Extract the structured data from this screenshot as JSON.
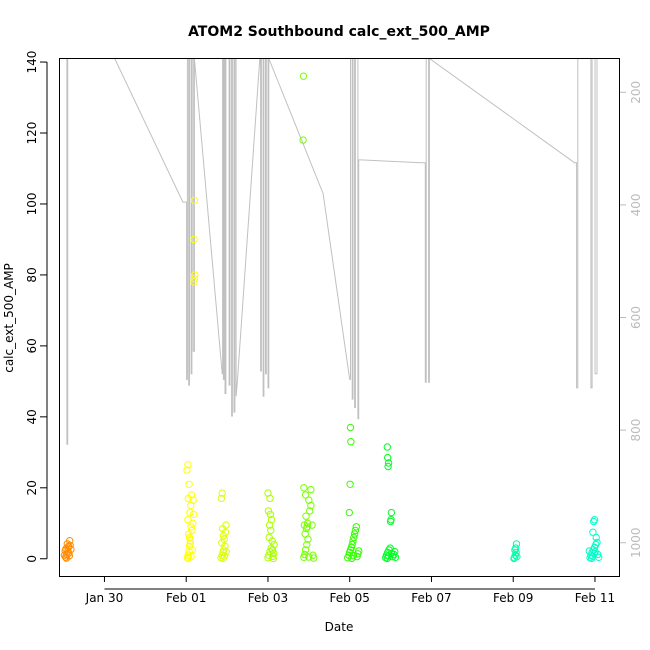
{
  "chart_data": {
    "type": "scatter",
    "title": "ATOM2 Southbound calc_ext_500_AMP",
    "xlabel": "Date",
    "ylabel": "calc_ext_500_AMP",
    "x_unit": "days since Jan 28",
    "xlim": [
      0.9,
      14.6
    ],
    "ylim": [
      -5,
      141
    ],
    "yticks": [
      0,
      20,
      40,
      60,
      80,
      100,
      120,
      140
    ],
    "xticks": [
      {
        "x": 2,
        "label": "Jan 30"
      },
      {
        "x": 4,
        "label": "Feb 01"
      },
      {
        "x": 6,
        "label": "Feb 03"
      },
      {
        "x": 8,
        "label": "Feb 05"
      },
      {
        "x": 10,
        "label": "Feb 07"
      },
      {
        "x": 12,
        "label": "Feb 09"
      },
      {
        "x": 14,
        "label": "Feb 11"
      }
    ],
    "right_axis": {
      "ylim": [
        1060,
        140
      ],
      "ticks": [
        200,
        400,
        600,
        800,
        1000
      ],
      "color": "#bbbbbb"
    },
    "grid": false,
    "line_color": "#c0c0c0",
    "depth_line": [
      [
        1.08,
        140
      ],
      [
        1.08,
        825
      ],
      [
        1.1,
        825
      ],
      [
        1.1,
        140
      ],
      [
        2.25,
        140
      ],
      [
        3.92,
        395
      ],
      [
        4.01,
        395
      ],
      [
        4.01,
        710
      ],
      [
        4.03,
        710
      ],
      [
        4.03,
        140
      ],
      [
        4.06,
        140
      ],
      [
        4.06,
        720
      ],
      [
        4.08,
        720
      ],
      [
        4.08,
        140
      ],
      [
        4.12,
        140
      ],
      [
        4.12,
        700
      ],
      [
        4.14,
        700
      ],
      [
        4.14,
        140
      ],
      [
        4.17,
        140
      ],
      [
        4.17,
        660
      ],
      [
        4.2,
        660
      ],
      [
        4.2,
        140
      ],
      [
        4.88,
        700
      ],
      [
        4.89,
        700
      ],
      [
        4.89,
        140
      ],
      [
        4.91,
        140
      ],
      [
        4.91,
        710
      ],
      [
        4.93,
        710
      ],
      [
        4.93,
        140
      ],
      [
        4.95,
        140
      ],
      [
        4.95,
        735
      ],
      [
        4.97,
        735
      ],
      [
        4.97,
        140
      ],
      [
        5.05,
        140
      ],
      [
        5.05,
        720
      ],
      [
        5.07,
        720
      ],
      [
        5.07,
        140
      ],
      [
        5.11,
        140
      ],
      [
        5.11,
        775
      ],
      [
        5.13,
        775
      ],
      [
        5.13,
        140
      ],
      [
        5.17,
        140
      ],
      [
        5.17,
        768
      ],
      [
        5.19,
        768
      ],
      [
        5.19,
        140
      ],
      [
        5.22,
        140
      ],
      [
        5.22,
        740
      ],
      [
        5.25,
        715
      ],
      [
        5.8,
        140
      ],
      [
        5.82,
        140
      ],
      [
        5.82,
        695
      ],
      [
        5.84,
        695
      ],
      [
        5.84,
        140
      ],
      [
        5.88,
        140
      ],
      [
        5.88,
        740
      ],
      [
        5.9,
        740
      ],
      [
        5.9,
        140
      ],
      [
        5.94,
        140
      ],
      [
        5.94,
        700
      ],
      [
        5.96,
        700
      ],
      [
        5.96,
        140
      ],
      [
        6.0,
        140
      ],
      [
        6.0,
        725
      ],
      [
        6.02,
        725
      ],
      [
        6.02,
        140
      ],
      [
        7.35,
        380
      ],
      [
        8.0,
        710
      ],
      [
        8.02,
        710
      ],
      [
        8.02,
        140
      ],
      [
        8.06,
        140
      ],
      [
        8.06,
        745
      ],
      [
        8.08,
        745
      ],
      [
        8.08,
        140
      ],
      [
        8.12,
        140
      ],
      [
        8.12,
        760
      ],
      [
        8.14,
        760
      ],
      [
        8.14,
        140
      ],
      [
        8.2,
        140
      ],
      [
        8.2,
        780
      ],
      [
        8.22,
        780
      ],
      [
        8.22,
        320
      ],
      [
        9.75,
        325
      ],
      [
        9.85,
        325
      ],
      [
        9.85,
        715
      ],
      [
        9.87,
        715
      ],
      [
        9.87,
        140
      ],
      [
        9.93,
        140
      ],
      [
        9.93,
        715
      ],
      [
        9.95,
        715
      ],
      [
        9.95,
        140
      ],
      [
        13.5,
        325
      ],
      [
        13.55,
        325
      ],
      [
        13.55,
        725
      ],
      [
        13.58,
        725
      ],
      [
        13.58,
        140
      ],
      [
        13.9,
        140
      ],
      [
        13.9,
        725
      ],
      [
        13.93,
        725
      ],
      [
        13.93,
        140
      ],
      [
        14.0,
        140
      ],
      [
        14.0,
        700
      ],
      [
        14.05,
        700
      ],
      [
        14.05,
        140
      ]
    ],
    "series": [
      {
        "color": "#ff8c00",
        "values": [
          [
            1.05,
            0.5
          ],
          [
            1.08,
            1.2
          ],
          [
            1.1,
            2.0
          ],
          [
            1.06,
            2.8
          ],
          [
            1.12,
            3.5
          ],
          [
            1.09,
            4.2
          ],
          [
            1.15,
            5.1
          ],
          [
            1.07,
            0.2
          ],
          [
            1.13,
            1.6
          ],
          [
            1.04,
            2.3
          ],
          [
            1.11,
            3.0
          ],
          [
            1.16,
            3.8
          ],
          [
            1.02,
            1.0
          ],
          [
            1.18,
            2.6
          ],
          [
            1.14,
            0.8
          ]
        ]
      },
      {
        "color": "#ffff00",
        "values": [
          [
            4.03,
            0.3
          ],
          [
            4.05,
            1.0
          ],
          [
            4.07,
            2.0
          ],
          [
            4.08,
            3.5
          ],
          [
            4.1,
            5.0
          ],
          [
            4.06,
            7.0
          ],
          [
            4.12,
            9.0
          ],
          [
            4.04,
            11.0
          ],
          [
            4.09,
            13.0
          ],
          [
            4.11,
            15.0
          ],
          [
            4.05,
            17.0
          ],
          [
            4.13,
            18.0
          ],
          [
            4.07,
            21.0
          ],
          [
            4.02,
            25.0
          ],
          [
            4.04,
            26.5
          ],
          [
            4.1,
            4.2
          ],
          [
            4.15,
            2.5
          ],
          [
            4.14,
            8.0
          ],
          [
            4.16,
            10.0
          ],
          [
            4.18,
            12.5
          ],
          [
            4.17,
            16.5
          ],
          [
            4.19,
            78.0
          ],
          [
            4.2,
            79.0
          ],
          [
            4.21,
            80.0
          ],
          [
            4.19,
            90.0
          ],
          [
            4.2,
            101.0
          ],
          [
            4.06,
            0.1
          ],
          [
            4.12,
            0.6
          ],
          [
            4.08,
            6.0
          ]
        ]
      },
      {
        "color": "#ddff00",
        "values": [
          [
            4.85,
            0.3
          ],
          [
            4.88,
            1.0
          ],
          [
            4.9,
            1.8
          ],
          [
            4.92,
            2.5
          ],
          [
            4.95,
            3.5
          ],
          [
            4.87,
            4.5
          ],
          [
            4.93,
            5.5
          ],
          [
            4.91,
            6.5
          ],
          [
            4.96,
            7.5
          ],
          [
            4.89,
            8.5
          ],
          [
            4.97,
            9.5
          ],
          [
            4.86,
            17.0
          ],
          [
            4.88,
            18.5
          ],
          [
            4.94,
            0.8
          ],
          [
            4.98,
            2.0
          ],
          [
            4.9,
            0.1
          ]
        ]
      },
      {
        "color": "#aaff00",
        "values": [
          [
            6.0,
            0.3
          ],
          [
            6.02,
            1.0
          ],
          [
            6.05,
            2.0
          ],
          [
            6.08,
            3.0
          ],
          [
            6.1,
            5.0
          ],
          [
            6.03,
            6.0
          ],
          [
            6.07,
            8.0
          ],
          [
            6.04,
            9.5
          ],
          [
            6.09,
            11.0
          ],
          [
            6.06,
            12.5
          ],
          [
            6.01,
            13.5
          ],
          [
            6.05,
            17.0
          ],
          [
            6.0,
            18.5
          ],
          [
            6.12,
            0.7
          ],
          [
            6.14,
            1.5
          ],
          [
            6.11,
            2.5
          ],
          [
            6.13,
            0.1
          ],
          [
            6.15,
            4.0
          ]
        ]
      },
      {
        "color": "#77ff00",
        "values": [
          [
            6.88,
            0.4
          ],
          [
            6.9,
            1.2
          ],
          [
            6.92,
            2.5
          ],
          [
            6.95,
            4.0
          ],
          [
            6.98,
            5.5
          ],
          [
            6.91,
            7.0
          ],
          [
            6.94,
            8.5
          ],
          [
            6.96,
            9.0
          ],
          [
            6.89,
            9.5
          ],
          [
            6.97,
            10.0
          ],
          [
            6.93,
            12.0
          ],
          [
            7.02,
            13.5
          ],
          [
            7.05,
            15.0
          ],
          [
            7.0,
            16.5
          ],
          [
            6.92,
            18.0
          ],
          [
            7.05,
            19.5
          ],
          [
            6.88,
            20.0
          ],
          [
            7.08,
            9.5
          ],
          [
            7.1,
            1.0
          ],
          [
            7.12,
            0.2
          ],
          [
            7.0,
            0.5
          ],
          [
            6.86,
            118.0
          ],
          [
            6.87,
            136.0
          ]
        ]
      },
      {
        "color": "#33ff00",
        "values": [
          [
            7.95,
            0.3
          ],
          [
            7.98,
            1.0
          ],
          [
            8.0,
            1.8
          ],
          [
            8.02,
            2.5
          ],
          [
            8.04,
            3.2
          ],
          [
            8.06,
            4.0
          ],
          [
            8.08,
            5.0
          ],
          [
            8.1,
            6.0
          ],
          [
            8.12,
            7.0
          ],
          [
            8.14,
            8.0
          ],
          [
            8.16,
            9.0
          ],
          [
            7.99,
            13.0
          ],
          [
            8.01,
            21.0
          ],
          [
            8.03,
            33.0
          ],
          [
            8.02,
            37.0
          ],
          [
            8.18,
            0.6
          ],
          [
            8.2,
            1.4
          ],
          [
            8.22,
            2.2
          ],
          [
            8.05,
            0.1
          ],
          [
            8.09,
            0.9
          ]
        ]
      },
      {
        "color": "#00ff22",
        "values": [
          [
            8.88,
            0.3
          ],
          [
            8.9,
            1.0
          ],
          [
            8.93,
            1.8
          ],
          [
            8.96,
            2.5
          ],
          [
            8.99,
            3.0
          ],
          [
            9.02,
            1.5
          ],
          [
            9.05,
            0.6
          ],
          [
            9.08,
            1.2
          ],
          [
            8.92,
            0.1
          ],
          [
            8.95,
            0.8
          ],
          [
            8.94,
            26.0
          ],
          [
            8.95,
            27.0
          ],
          [
            8.93,
            28.5
          ],
          [
            8.92,
            31.5
          ],
          [
            9.0,
            10.5
          ],
          [
            9.01,
            11.0
          ],
          [
            9.02,
            13.0
          ],
          [
            9.1,
            2.0
          ],
          [
            9.12,
            0.4
          ]
        ]
      },
      {
        "color": "#00ffa8",
        "values": [
          [
            12.03,
            0.3
          ],
          [
            12.05,
            1.0
          ],
          [
            12.07,
            1.8
          ],
          [
            12.04,
            2.5
          ],
          [
            12.06,
            3.0
          ],
          [
            12.08,
            4.2
          ],
          [
            12.02,
            0.1
          ],
          [
            12.09,
            0.6
          ]
        ]
      },
      {
        "color": "#00ffc8",
        "values": [
          [
            13.88,
            0.3
          ],
          [
            13.9,
            1.0
          ],
          [
            13.93,
            1.8
          ],
          [
            13.96,
            2.5
          ],
          [
            13.99,
            3.2
          ],
          [
            14.02,
            4.0
          ],
          [
            14.05,
            4.6
          ],
          [
            13.92,
            0.1
          ],
          [
            13.95,
            0.7
          ],
          [
            13.98,
            1.4
          ],
          [
            14.0,
            2.0
          ],
          [
            14.03,
            6.0
          ],
          [
            13.97,
            10.5
          ],
          [
            13.99,
            11.0
          ],
          [
            13.95,
            7.5
          ],
          [
            14.07,
            1.2
          ],
          [
            14.09,
            0.4
          ],
          [
            13.86,
            2.2
          ]
        ]
      }
    ]
  }
}
